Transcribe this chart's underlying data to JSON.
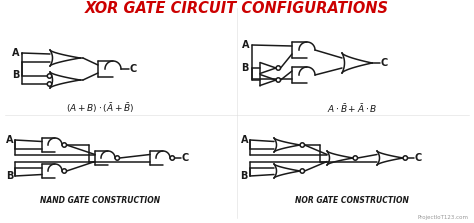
{
  "title": "XOR GATE CIRCUIT CONFIGURATIONS",
  "title_color": "#CC0000",
  "bg_color": "#FFFFFF",
  "line_color": "#1a1a1a",
  "sub1": "NAND GATE CONSTRUCTION",
  "sub2": "NOR GATE CONSTRUCTION",
  "watermark": "ProjectIoT123.com"
}
